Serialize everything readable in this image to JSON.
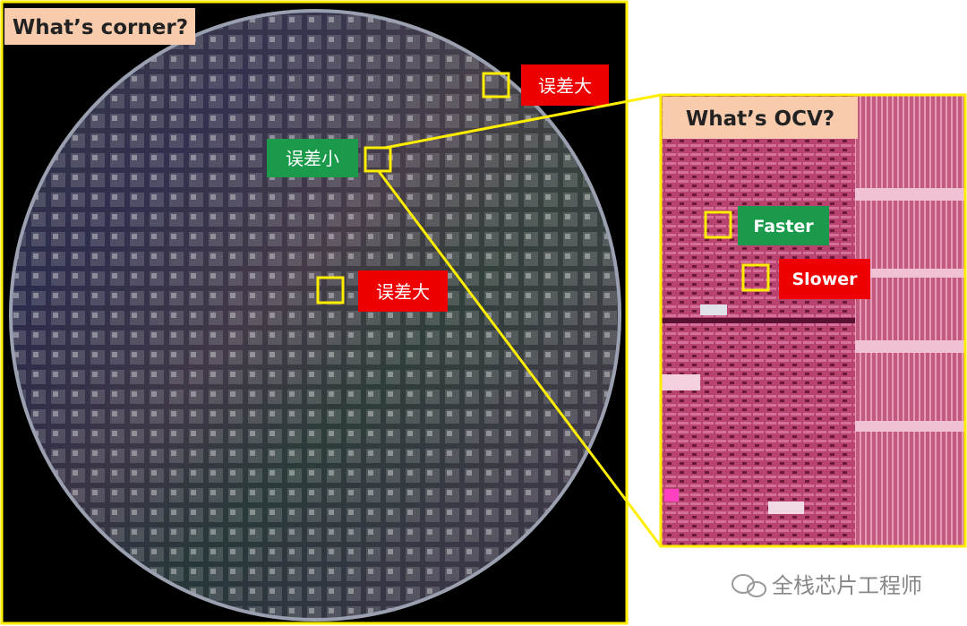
{
  "left_panel": {
    "title": "What’s corner?",
    "labels": [
      {
        "text": "误差大"
      },
      {
        "text": "误差小"
      },
      {
        "text": "误差大"
      }
    ]
  },
  "right_panel": {
    "title": "What’s OCV?",
    "labels": [
      {
        "text": "Faster"
      },
      {
        "text": "Slower"
      }
    ]
  },
  "watermark": "全栈芯片工程师"
}
